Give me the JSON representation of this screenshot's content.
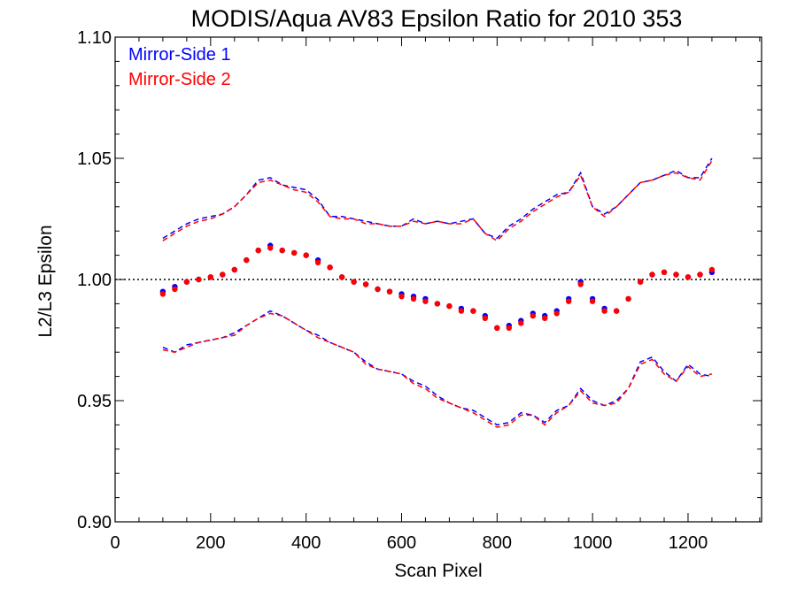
{
  "chart_data": {
    "type": "scatter",
    "title": "MODIS/Aqua AV83 Epsilon Ratio for 2010 353",
    "xlabel": "Scan Pixel",
    "ylabel": "L2/L3 Epsilon",
    "xlim": [
      0,
      1354
    ],
    "ylim": [
      0.9,
      1.1
    ],
    "xticks": [
      0,
      200,
      400,
      600,
      800,
      1000,
      1200
    ],
    "xtick_labels": [
      "0",
      "200",
      "400",
      "600",
      "800",
      "1000",
      "1200"
    ],
    "yticks": [
      0.9,
      0.95,
      1.0,
      1.05,
      1.1
    ],
    "ytick_labels": [
      "0.90",
      "0.95",
      "1.00",
      "1.05",
      "1.10"
    ],
    "reference_line": 1.0,
    "legend_position": "top-left",
    "grid": false,
    "x": [
      100,
      125,
      150,
      175,
      200,
      225,
      250,
      275,
      300,
      325,
      350,
      375,
      400,
      425,
      450,
      475,
      500,
      525,
      550,
      575,
      600,
      625,
      650,
      675,
      700,
      725,
      750,
      775,
      800,
      825,
      850,
      875,
      900,
      925,
      950,
      975,
      1000,
      1025,
      1050,
      1075,
      1100,
      1125,
      1150,
      1175,
      1200,
      1225,
      1250
    ],
    "series": [
      {
        "name": "Mirror-Side 1",
        "color": "#0000ff",
        "mean": [
          0.995,
          0.997,
          0.999,
          1.0,
          1.001,
          1.002,
          1.004,
          1.008,
          1.012,
          1.014,
          1.012,
          1.011,
          1.01,
          1.008,
          1.005,
          1.001,
          0.999,
          0.998,
          0.996,
          0.995,
          0.994,
          0.993,
          0.992,
          0.99,
          0.989,
          0.988,
          0.987,
          0.985,
          0.98,
          0.981,
          0.983,
          0.986,
          0.985,
          0.987,
          0.992,
          0.999,
          0.992,
          0.988,
          0.987,
          0.992,
          0.999,
          1.002,
          1.003,
          1.002,
          1.001,
          1.002,
          1.003
        ],
        "upper": [
          1.017,
          1.02,
          1.023,
          1.025,
          1.026,
          1.027,
          1.03,
          1.035,
          1.041,
          1.042,
          1.039,
          1.038,
          1.037,
          1.033,
          1.026,
          1.026,
          1.025,
          1.024,
          1.023,
          1.022,
          1.022,
          1.025,
          1.023,
          1.024,
          1.023,
          1.024,
          1.025,
          1.019,
          1.017,
          1.022,
          1.025,
          1.029,
          1.032,
          1.035,
          1.036,
          1.044,
          1.03,
          1.027,
          1.03,
          1.035,
          1.04,
          1.041,
          1.043,
          1.045,
          1.042,
          1.042,
          1.05
        ],
        "lower": [
          0.972,
          0.97,
          0.973,
          0.974,
          0.975,
          0.976,
          0.978,
          0.981,
          0.984,
          0.987,
          0.985,
          0.982,
          0.979,
          0.977,
          0.974,
          0.972,
          0.97,
          0.966,
          0.963,
          0.962,
          0.961,
          0.958,
          0.956,
          0.952,
          0.949,
          0.947,
          0.946,
          0.943,
          0.94,
          0.941,
          0.945,
          0.944,
          0.941,
          0.946,
          0.948,
          0.955,
          0.95,
          0.948,
          0.95,
          0.955,
          0.966,
          0.968,
          0.962,
          0.958,
          0.965,
          0.961,
          0.96
        ]
      },
      {
        "name": "Mirror-Side 2",
        "color": "#ff0000",
        "mean": [
          0.994,
          0.996,
          0.999,
          1.0,
          1.001,
          1.002,
          1.004,
          1.008,
          1.012,
          1.013,
          1.012,
          1.011,
          1.01,
          1.007,
          1.005,
          1.001,
          0.999,
          0.998,
          0.996,
          0.995,
          0.993,
          0.992,
          0.991,
          0.99,
          0.989,
          0.987,
          0.987,
          0.984,
          0.98,
          0.98,
          0.982,
          0.985,
          0.984,
          0.986,
          0.991,
          0.998,
          0.991,
          0.987,
          0.987,
          0.992,
          0.999,
          1.002,
          1.003,
          1.002,
          1.001,
          1.002,
          1.004
        ],
        "upper": [
          1.016,
          1.019,
          1.022,
          1.024,
          1.025,
          1.027,
          1.03,
          1.035,
          1.04,
          1.041,
          1.039,
          1.037,
          1.036,
          1.032,
          1.026,
          1.025,
          1.025,
          1.023,
          1.023,
          1.022,
          1.022,
          1.024,
          1.023,
          1.024,
          1.023,
          1.023,
          1.025,
          1.019,
          1.016,
          1.021,
          1.024,
          1.028,
          1.031,
          1.034,
          1.036,
          1.043,
          1.03,
          1.026,
          1.03,
          1.035,
          1.04,
          1.041,
          1.043,
          1.044,
          1.042,
          1.041,
          1.049
        ],
        "lower": [
          0.971,
          0.97,
          0.972,
          0.974,
          0.975,
          0.976,
          0.977,
          0.981,
          0.984,
          0.986,
          0.985,
          0.982,
          0.979,
          0.976,
          0.974,
          0.972,
          0.97,
          0.965,
          0.963,
          0.962,
          0.961,
          0.957,
          0.955,
          0.951,
          0.949,
          0.947,
          0.945,
          0.942,
          0.939,
          0.94,
          0.944,
          0.944,
          0.94,
          0.945,
          0.948,
          0.954,
          0.949,
          0.948,
          0.949,
          0.955,
          0.965,
          0.967,
          0.961,
          0.958,
          0.964,
          0.96,
          0.961
        ]
      }
    ]
  }
}
